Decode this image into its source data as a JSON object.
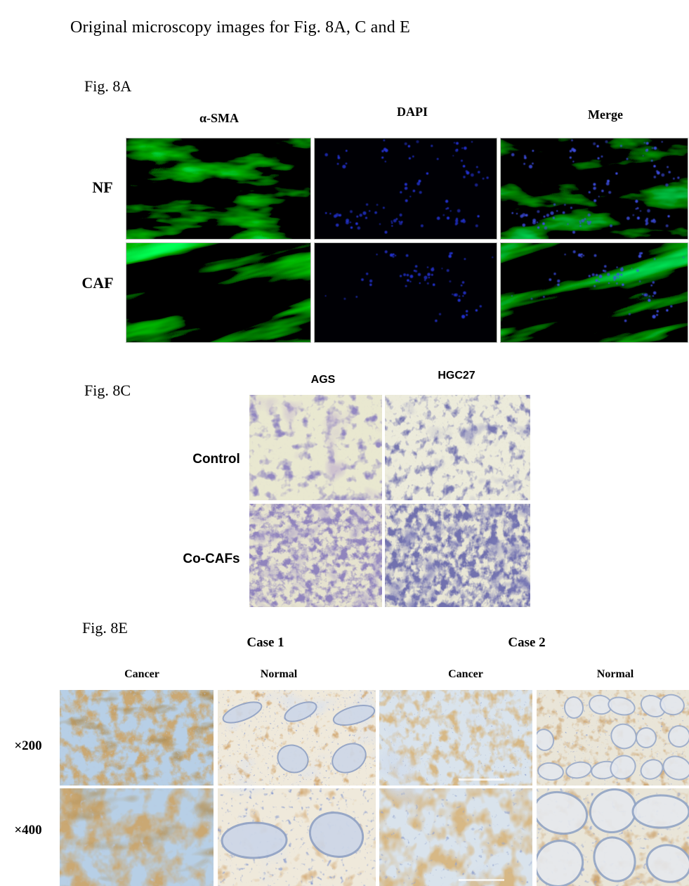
{
  "page": {
    "title": "Original microscopy images for Fig. 8A, C and E"
  },
  "fig8a": {
    "label": "Fig. 8A",
    "col_headers": [
      "α-SMA",
      "DAPI",
      "Merge"
    ],
    "row_headers": [
      "NF",
      "CAF"
    ]
  },
  "fig8c": {
    "label": "Fig. 8C",
    "col_headers": [
      "AGS",
      "HGC27"
    ],
    "row_headers": [
      "Control",
      "Co-CAFs"
    ]
  },
  "fig8e": {
    "label": "Fig. 8E",
    "case_headers": [
      "Case 1",
      "Case 2"
    ],
    "col_headers": [
      "Cancer",
      "Normal",
      "Cancer",
      "Normal"
    ],
    "row_headers": [
      "×200",
      "×400"
    ]
  },
  "colors": {
    "fluorescence_green": "#2f9e41",
    "dapi_blue": "#2433d6",
    "crystal_violet": "#453d86",
    "transwell_membrane": "#e9e8d0",
    "ihc_brown": "#96642c",
    "hematoxylin_blue": "#8ea0c4",
    "page_background": "#ffffff"
  }
}
